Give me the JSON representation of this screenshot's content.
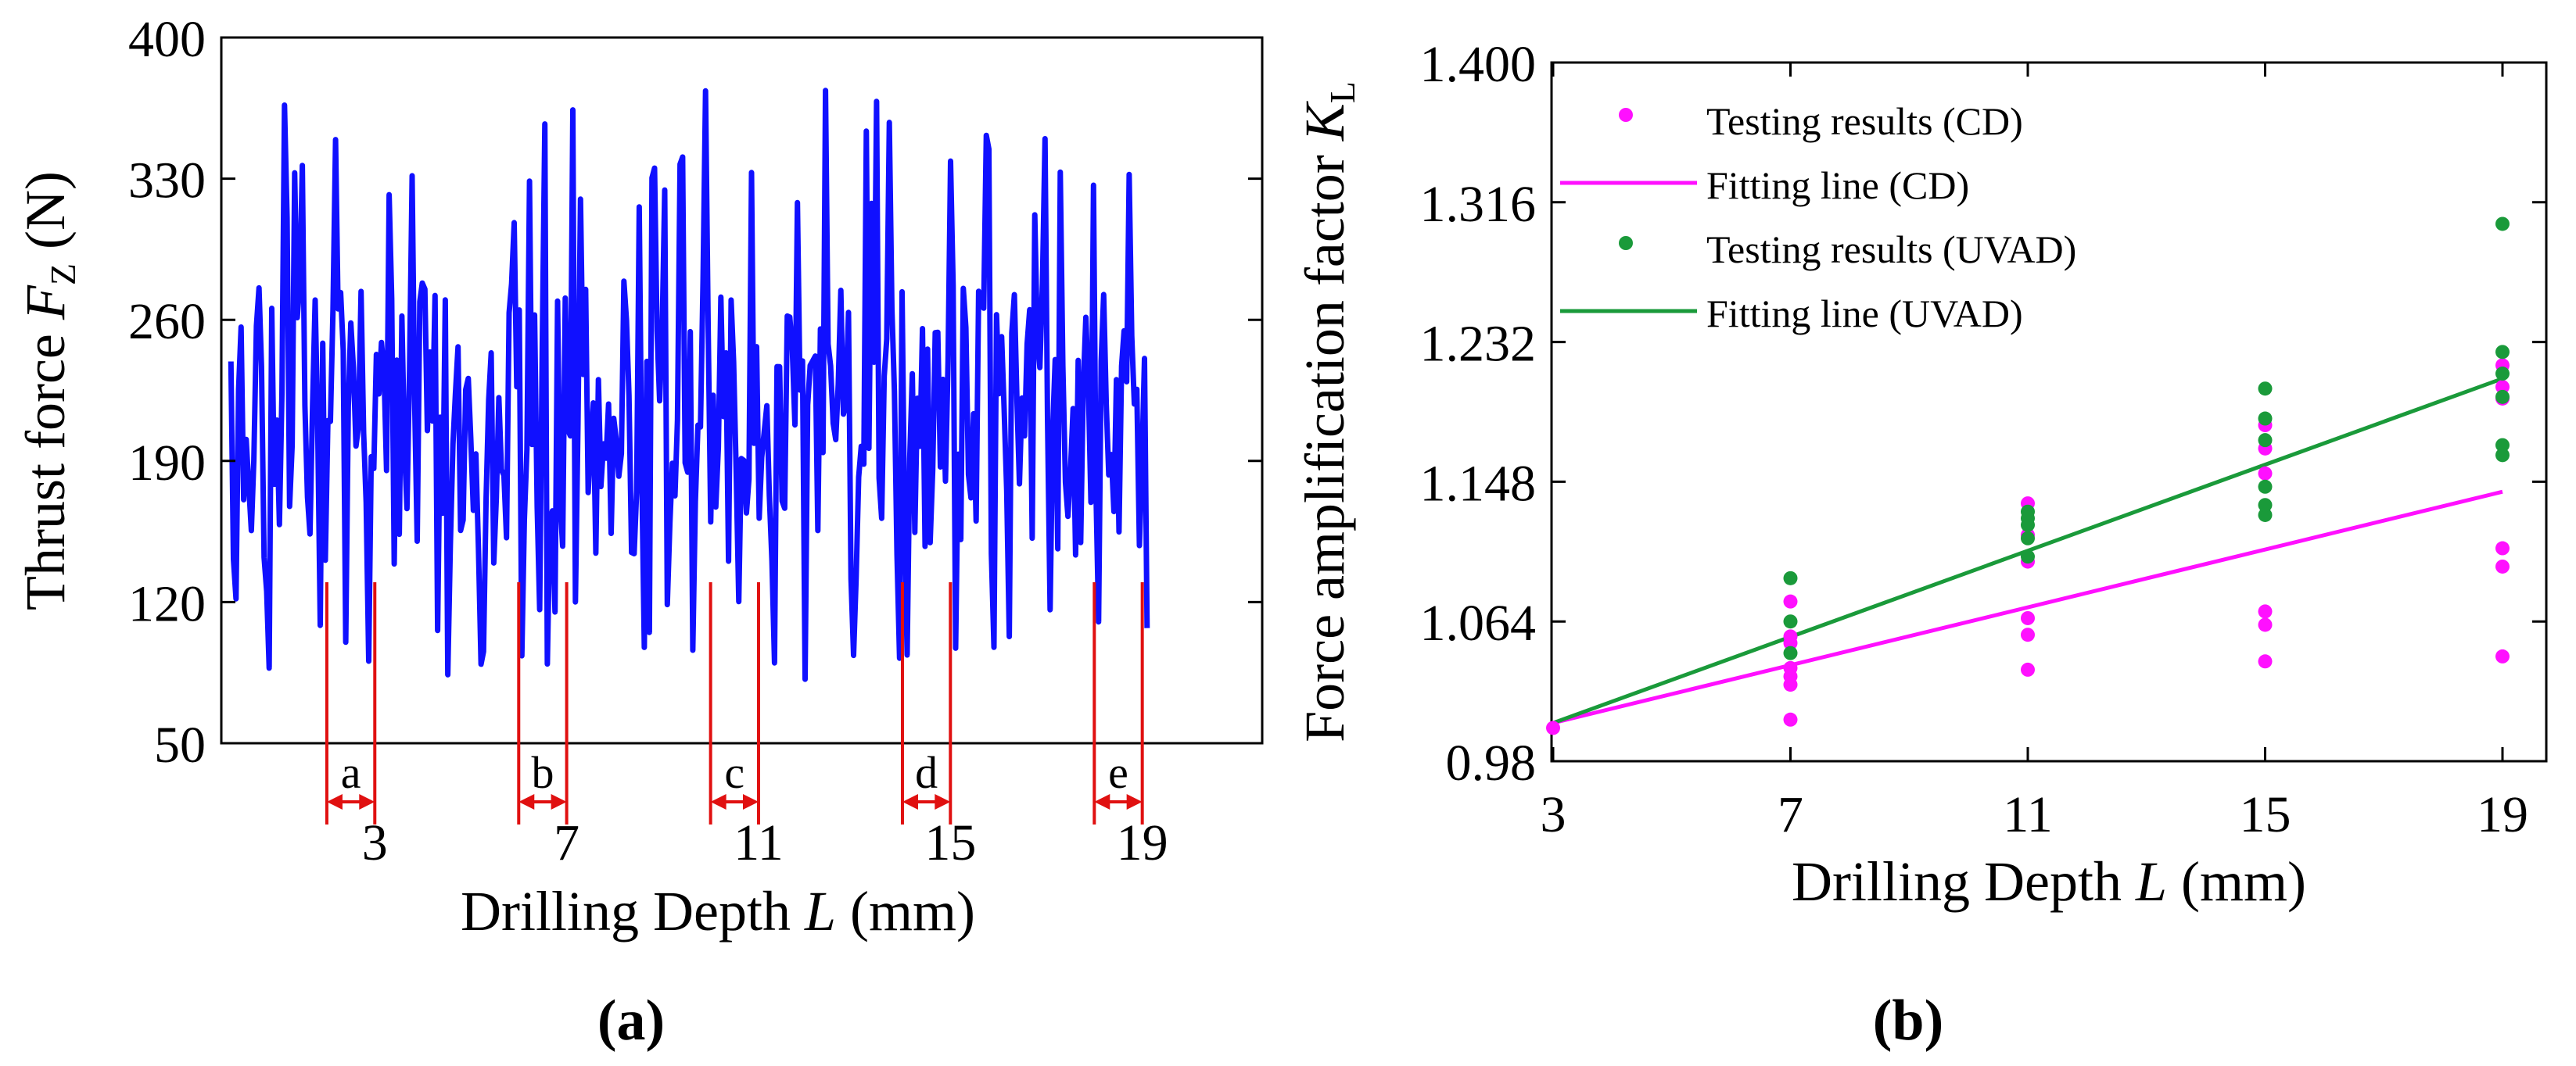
{
  "colors": {
    "trace": "#1010ff",
    "marker": "#e01010",
    "cd": "#ff10ff",
    "uvad": "#1a9a3a",
    "axis": "#000000"
  },
  "panel_a": {
    "caption": "(a)",
    "xlabel_prefix": "Drilling Depth ",
    "xlabel_var": "L",
    "xlabel_suffix": " (mm)",
    "ylabel_prefix": "Thrust force ",
    "ylabel_var": "F",
    "ylabel_sub": "Z",
    "ylabel_suffix": " (N)"
  },
  "panel_b": {
    "caption": "(b)",
    "xlabel_prefix": "Drilling Depth ",
    "xlabel_var": "L",
    "xlabel_suffix": " (mm)",
    "ylabel_prefix": "Force amplification factor ",
    "ylabel_var": "K",
    "ylabel_sub": "L"
  },
  "chart_data": [
    {
      "type": "line",
      "title": "",
      "series_name": "Thrust force",
      "xlabel": "Drilling Depth L (mm)",
      "ylabel": "Thrust force FZ (N)",
      "xlim": [
        -0.2,
        21.5
      ],
      "ylim": [
        50,
        400
      ],
      "yticks": [
        50,
        120,
        190,
        260,
        330,
        400
      ],
      "yticklabels": [
        "50",
        "120",
        "190",
        "260",
        "330",
        "400"
      ],
      "xticks": [
        3,
        7,
        11,
        15,
        19
      ],
      "xticklabels": [
        "3",
        "7",
        "11",
        "15",
        "19"
      ],
      "signal": {
        "x_start": 0,
        "x_end": 19.1,
        "samples": 360,
        "range_min": 65,
        "range_max": 378,
        "typical_band": [
          140,
          280
        ]
      },
      "intervals": [
        {
          "label": "a",
          "start": 2.0,
          "end": 3.0
        },
        {
          "label": "b",
          "start": 6.0,
          "end": 7.0
        },
        {
          "label": "c",
          "start": 10.0,
          "end": 11.0
        },
        {
          "label": "d",
          "start": 14.0,
          "end": 15.0
        },
        {
          "label": "e",
          "start": 18.0,
          "end": 19.0
        }
      ]
    },
    {
      "type": "scatter",
      "title": "",
      "xlabel": "Drilling Depth L (mm)",
      "ylabel": "Force amplification factor KL",
      "xlim": [
        3,
        19
      ],
      "ylim": [
        0.98,
        1.4
      ],
      "xticks": [
        3,
        7,
        11,
        15,
        19
      ],
      "xticklabels": [
        "3",
        "7",
        "11",
        "15",
        "19"
      ],
      "yticks": [
        0.98,
        1.064,
        1.148,
        1.232,
        1.316,
        1.4
      ],
      "yticklabels": [
        "0.98",
        "1.064",
        "1.148",
        "1.232",
        "1.316",
        "1.400"
      ],
      "legend_position": "top-left",
      "series": [
        {
          "name": "Testing results (CD)",
          "kind": "scatter",
          "color": "#ff10ff",
          "x": [
            3,
            7,
            7,
            7,
            7,
            7,
            7,
            7,
            11,
            11,
            11,
            11,
            11,
            11,
            15,
            15,
            15,
            15,
            15,
            15,
            19,
            19,
            19,
            19,
            19,
            19
          ],
          "y": [
            1.0,
            1.005,
            1.026,
            1.031,
            1.036,
            1.051,
            1.055,
            1.076,
            1.035,
            1.056,
            1.066,
            1.1,
            1.116,
            1.135,
            1.04,
            1.062,
            1.07,
            1.153,
            1.168,
            1.182,
            1.043,
            1.097,
            1.108,
            1.198,
            1.205,
            1.218
          ]
        },
        {
          "name": "Fitting line (CD)",
          "kind": "line",
          "color": "#ff10ff",
          "x": [
            3,
            19
          ],
          "y": [
            1.003,
            1.142
          ]
        },
        {
          "name": "Testing results (UVAD)",
          "kind": "scatter",
          "color": "#1a9a3a",
          "x": [
            7,
            7,
            7,
            11,
            11,
            11,
            11,
            11,
            15,
            15,
            15,
            15,
            15,
            15,
            19,
            19,
            19,
            19,
            19,
            19
          ],
          "y": [
            1.045,
            1.064,
            1.09,
            1.103,
            1.114,
            1.122,
            1.126,
            1.13,
            1.128,
            1.134,
            1.145,
            1.173,
            1.186,
            1.204,
            1.164,
            1.17,
            1.199,
            1.213,
            1.226,
            1.303
          ]
        },
        {
          "name": "Fitting line (UVAD)",
          "kind": "line",
          "color": "#1a9a3a",
          "x": [
            3,
            19
          ],
          "y": [
            1.003,
            1.21
          ]
        }
      ]
    }
  ]
}
